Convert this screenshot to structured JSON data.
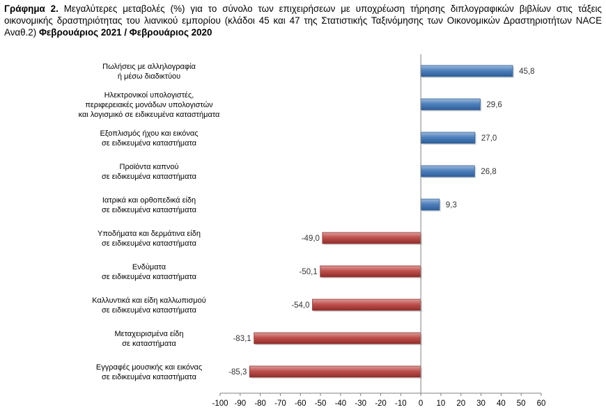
{
  "title": {
    "lead": "Γράφημα 2.",
    "text": "Μεγαλύτερες μεταβολές (%) για το σύνολο των επιχειρήσεων με υποχρέωση τήρησης διπλογραφικών βιβλίων στις τάξεις οικονομικής δραστηριότητας του λιανικού εμπορίου (κλάδοι 45 και 47 της Στατιστικής Ταξινόμησης των Οικονομικών Δραστηριοτήτων NACE Αναθ.2)",
    "period": "Φεβρουάριος 2021 / Φεβρουάριος 2020"
  },
  "colors": {
    "positive": "#4F81BD",
    "positive_dark": "#2F5E98",
    "negative": "#C0504D",
    "negative_dark": "#8E2E2B",
    "axis": "#7f7f7f"
  },
  "chart_data": {
    "type": "bar",
    "orientation": "horizontal",
    "categories": [
      [
        "Πωλήσεις με αλληλογραφία",
        "ή μέσω διαδικτύου"
      ],
      [
        "Ηλεκτρονικοί υπολογιστές,",
        "περιφερειακές μονάδων υπολογιστών",
        "και λογισμικό σε ειδικευμένα καταστήματα"
      ],
      [
        "Εξοπλισμός ήχου και εικόνας",
        "σε ειδικευμένα καταστήματα"
      ],
      [
        "Προϊόντα καπνού",
        "σε ειδικευμένα καταστήματα"
      ],
      [
        "Ιατρικά και ορθοπεδικά είδη",
        "σε ειδικευμένα καταστήματα"
      ],
      [
        "Υποδήματα και δερμάτινα είδη",
        "σε ειδικευμένα καταστήματα"
      ],
      [
        "Ενδύματα",
        "σε ειδικευμένα καταστήματα"
      ],
      [
        "Καλλυντικά και είδη καλλωπισμού",
        "σε ειδικευμένα καταστήματα"
      ],
      [
        "Μεταχειρισμένα είδη",
        "σε καταστήματα"
      ],
      [
        "Εγγραφές μουσικής και εικόνας",
        "σε ειδικευμένα καταστήματα"
      ]
    ],
    "values": [
      45.8,
      29.6,
      27.0,
      26.8,
      9.3,
      -49.0,
      -50.1,
      -54.0,
      -83.1,
      -85.3
    ],
    "value_labels": [
      "45,8",
      "29,6",
      "27,0",
      "26,8",
      "9,3",
      "-49,0",
      "-50,1",
      "-54,0",
      "-83,1",
      "-85,3"
    ],
    "xticks": [
      -100,
      -90,
      -80,
      -70,
      -60,
      -50,
      -40,
      -30,
      -20,
      -10,
      0,
      10,
      20,
      30,
      40,
      50,
      60
    ],
    "xlim": [
      -100,
      60
    ],
    "grid": false
  }
}
